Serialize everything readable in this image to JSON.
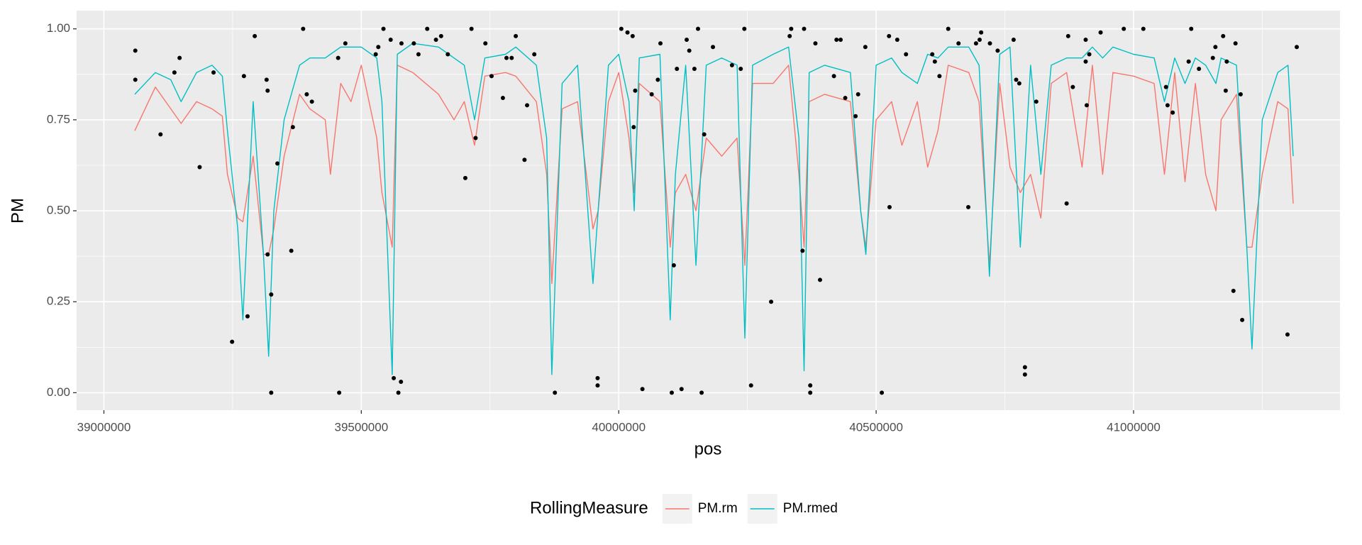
{
  "chart_data": {
    "type": "line",
    "x_label": "pos",
    "y_label": "PM",
    "legend_title": "RollingMeasure",
    "legend_position": "bottom",
    "grid": true,
    "panel_color": "#EBEBEB",
    "xlim": [
      38947000,
      41401000
    ],
    "ylim": [
      -0.048,
      1.05
    ],
    "xticks": [
      39000000,
      39500000,
      40000000,
      40500000,
      41000000
    ],
    "yticks": [
      {
        "value": 0,
        "label": "0.00"
      },
      0.25,
      {
        "value": 0.5,
        "label": "0.50"
      },
      0.75,
      {
        "value": 1,
        "label": "1.00"
      }
    ],
    "x_minor_grid": [
      39250000,
      39750000,
      40250000,
      40750000,
      41250000
    ],
    "y_minor_grid": [
      0.125,
      0.375,
      0.625,
      0.875
    ],
    "x": [
      39060000,
      39100000,
      39130000,
      39150000,
      39180000,
      39210000,
      39230000,
      39240000,
      39260000,
      39270000,
      39290000,
      39310000,
      39320000,
      39330000,
      39350000,
      39380000,
      39400000,
      39430000,
      39440000,
      39460000,
      39480000,
      39500000,
      39530000,
      39540000,
      39560000,
      39570000,
      39600000,
      39650000,
      39680000,
      39700000,
      39720000,
      39740000,
      39780000,
      39800000,
      39840000,
      39860000,
      39870000,
      39890000,
      39920000,
      39950000,
      39960000,
      39980000,
      40000000,
      40020000,
      40030000,
      40040000,
      40080000,
      40100000,
      40110000,
      40130000,
      40150000,
      40170000,
      40200000,
      40230000,
      40245000,
      40260000,
      40300000,
      40330000,
      40350000,
      40360000,
      40370000,
      40400000,
      40450000,
      40470000,
      40480000,
      40500000,
      40530000,
      40550000,
      40580000,
      40600000,
      40620000,
      40640000,
      40680000,
      40700000,
      40720000,
      40740000,
      40760000,
      40780000,
      40800000,
      40820000,
      40840000,
      40870000,
      40900000,
      40920000,
      40940000,
      40960000,
      41000000,
      41040000,
      41060000,
      41080000,
      41100000,
      41120000,
      41140000,
      41160000,
      41170000,
      41200000,
      41220000,
      41230000,
      41250000,
      41280000,
      41300000,
      41310000
    ],
    "series": [
      {
        "name": "PM.rm",
        "color": "#F8766D",
        "values": [
          0.72,
          0.84,
          0.78,
          0.74,
          0.8,
          0.78,
          0.76,
          0.6,
          0.48,
          0.47,
          0.65,
          0.38,
          0.38,
          0.45,
          0.65,
          0.82,
          0.78,
          0.75,
          0.6,
          0.85,
          0.8,
          0.9,
          0.7,
          0.55,
          0.4,
          0.9,
          0.88,
          0.82,
          0.75,
          0.8,
          0.68,
          0.87,
          0.88,
          0.87,
          0.8,
          0.6,
          0.3,
          0.78,
          0.8,
          0.45,
          0.5,
          0.8,
          0.88,
          0.7,
          0.55,
          0.85,
          0.8,
          0.4,
          0.55,
          0.6,
          0.5,
          0.7,
          0.65,
          0.7,
          0.35,
          0.85,
          0.85,
          0.9,
          0.6,
          0.4,
          0.8,
          0.82,
          0.8,
          0.5,
          0.4,
          0.75,
          0.8,
          0.68,
          0.8,
          0.62,
          0.72,
          0.9,
          0.88,
          0.8,
          0.35,
          0.85,
          0.62,
          0.55,
          0.6,
          0.48,
          0.85,
          0.88,
          0.62,
          0.9,
          0.6,
          0.88,
          0.87,
          0.85,
          0.6,
          0.88,
          0.58,
          0.85,
          0.6,
          0.5,
          0.75,
          0.82,
          0.4,
          0.4,
          0.6,
          0.8,
          0.78,
          0.52
        ]
      },
      {
        "name": "PM.rmed",
        "color": "#00BFC4",
        "values": [
          0.82,
          0.88,
          0.86,
          0.8,
          0.88,
          0.9,
          0.87,
          0.72,
          0.45,
          0.2,
          0.8,
          0.38,
          0.1,
          0.5,
          0.75,
          0.9,
          0.92,
          0.92,
          0.93,
          0.95,
          0.95,
          0.95,
          0.92,
          0.8,
          0.05,
          0.93,
          0.96,
          0.95,
          0.92,
          0.9,
          0.75,
          0.92,
          0.93,
          0.95,
          0.9,
          0.7,
          0.05,
          0.85,
          0.9,
          0.3,
          0.5,
          0.9,
          0.93,
          0.8,
          0.5,
          0.92,
          0.93,
          0.2,
          0.6,
          0.9,
          0.35,
          0.9,
          0.92,
          0.9,
          0.15,
          0.9,
          0.93,
          0.95,
          0.7,
          0.06,
          0.88,
          0.9,
          0.88,
          0.5,
          0.38,
          0.9,
          0.92,
          0.88,
          0.85,
          0.93,
          0.92,
          0.95,
          0.95,
          0.9,
          0.32,
          0.93,
          0.95,
          0.4,
          0.9,
          0.6,
          0.9,
          0.92,
          0.92,
          0.95,
          0.92,
          0.95,
          0.93,
          0.92,
          0.8,
          0.92,
          0.85,
          0.92,
          0.9,
          0.85,
          0.92,
          0.9,
          0.4,
          0.12,
          0.75,
          0.88,
          0.9,
          0.65
        ]
      }
    ],
    "points": {
      "color": "#000000",
      "x": [
        39061000,
        39061000,
        39110000,
        39137000,
        39147000,
        39186000,
        39213000,
        39249000,
        39272000,
        39279000,
        39293000,
        39316000,
        39318000,
        39318000,
        39325000,
        39325000,
        39337000,
        39364000,
        39367000,
        39387000,
        39394000,
        39404000,
        39455000,
        39457000,
        39469000,
        39528000,
        39533000,
        39543000,
        39557000,
        39563000,
        39572000,
        39577000,
        39578000,
        39602000,
        39611000,
        39628000,
        39645000,
        39655000,
        39668000,
        39702000,
        39714000,
        39722000,
        39741000,
        39753000,
        39775000,
        39782000,
        39792000,
        39800000,
        39817000,
        39822000,
        39836000,
        39876000,
        39959000,
        39959000,
        40005000,
        40017000,
        40027000,
        40029000,
        40032000,
        40046000,
        40064000,
        40076000,
        40081000,
        40103000,
        40107000,
        40113000,
        40122000,
        40132000,
        40137000,
        40147000,
        40154000,
        40161000,
        40166000,
        40183000,
        40220000,
        40237000,
        40244000,
        40257000,
        40296000,
        40332000,
        40335000,
        40357000,
        40360000,
        40372000,
        40372000,
        40382000,
        40391000,
        40418000,
        40423000,
        40431000,
        40440000,
        40460000,
        40465000,
        40479000,
        40511000,
        40525000,
        40526000,
        40541000,
        40558000,
        40609000,
        40614000,
        40623000,
        40640000,
        40660000,
        40679000,
        40694000,
        40701000,
        40704000,
        40721000,
        40736000,
        40767000,
        40772000,
        40778000,
        40789000,
        40789000,
        40811000,
        40870000,
        40873000,
        40882000,
        40907000,
        40907000,
        40909000,
        40914000,
        40936000,
        40981000,
        41019000,
        41063000,
        41066000,
        41076000,
        41107000,
        41112000,
        41127000,
        41154000,
        41159000,
        41174000,
        41179000,
        41181000,
        41194000,
        41198000,
        41208000,
        41211000,
        41299000,
        41317000
      ],
      "values": [
        0.94,
        0.86,
        0.71,
        0.88,
        0.92,
        0.62,
        0.88,
        0.14,
        0.87,
        0.21,
        0.98,
        0.86,
        0.83,
        0.38,
        0.27,
        0,
        0.63,
        0.39,
        0.73,
        1.0,
        0.82,
        0.8,
        0.92,
        0,
        0.96,
        0.93,
        0.95,
        1.0,
        0.97,
        0.04,
        0,
        0.03,
        0.96,
        0.96,
        0.93,
        1.0,
        0.97,
        0.98,
        0.93,
        0.59,
        1.0,
        0.7,
        0.96,
        0.87,
        0.81,
        0.92,
        0.92,
        0.98,
        0.64,
        0.79,
        0.93,
        0,
        0.02,
        0.04,
        1.0,
        0.99,
        0.98,
        0.73,
        0.83,
        0.01,
        0.82,
        0.86,
        0.96,
        0,
        0.35,
        0.89,
        0.01,
        0.97,
        0.94,
        0.89,
        1.0,
        0,
        0.71,
        0.95,
        0.9,
        0.89,
        1.0,
        0.02,
        0.25,
        0.98,
        1.0,
        0.39,
        1.0,
        0.02,
        0,
        0.96,
        0.31,
        0.87,
        0.97,
        0.97,
        0.81,
        0.76,
        0.82,
        0.95,
        0,
        0.98,
        0.51,
        0.97,
        0.93,
        0.93,
        0.91,
        0.87,
        1.0,
        0.96,
        0.51,
        0.96,
        0.97,
        0.99,
        0.96,
        0.94,
        0.97,
        0.86,
        0.85,
        0.07,
        0.05,
        0.8,
        0.52,
        0.98,
        0.84,
        0.97,
        0.91,
        0.79,
        0.93,
        0.99,
        1.0,
        1.0,
        0.84,
        0.79,
        0.77,
        0.91,
        1.0,
        0.89,
        0.92,
        0.95,
        0.98,
        0.83,
        0.91,
        0.28,
        0.96,
        0.82,
        0.2,
        0.16,
        0.95
      ]
    }
  }
}
